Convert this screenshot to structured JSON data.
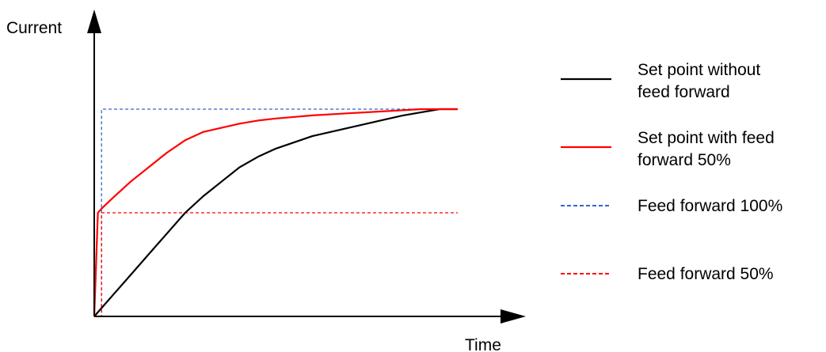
{
  "chart_data": {
    "type": "line",
    "xlabel": "Time",
    "ylabel": "Current",
    "xlim": [
      0,
      1
    ],
    "ylim": [
      0,
      1
    ],
    "grid": false,
    "legend_position": "right",
    "series": [
      {
        "name": "Set point without feed forward",
        "legend_lines": [
          "Set point without",
          "feed forward"
        ],
        "color": "#000000",
        "style": "solid",
        "x": [
          0,
          0.05,
          0.1,
          0.15,
          0.2,
          0.25,
          0.3,
          0.35,
          0.4,
          0.45,
          0.5,
          0.55,
          0.6,
          0.65,
          0.7,
          0.75,
          0.8,
          0.85,
          0.9,
          0.95,
          1.0
        ],
        "values": [
          0,
          0.1,
          0.2,
          0.3,
          0.4,
          0.5,
          0.58,
          0.65,
          0.72,
          0.77,
          0.81,
          0.84,
          0.87,
          0.89,
          0.91,
          0.93,
          0.95,
          0.97,
          0.985,
          1.0,
          1.0
        ]
      },
      {
        "name": "Set point with feed forward 50%",
        "legend_lines": [
          "Set point with feed",
          "forward 50%"
        ],
        "color": "#ff0000",
        "style": "solid",
        "x": [
          0,
          0.01,
          0.02,
          0.05,
          0.1,
          0.15,
          0.2,
          0.25,
          0.3,
          0.35,
          0.4,
          0.45,
          0.5,
          0.6,
          0.7,
          0.8,
          0.9,
          1.0
        ],
        "values": [
          0,
          0.5,
          0.52,
          0.57,
          0.65,
          0.72,
          0.79,
          0.85,
          0.89,
          0.91,
          0.93,
          0.945,
          0.955,
          0.97,
          0.98,
          0.99,
          1.0,
          1.0
        ]
      },
      {
        "name": "Feed forward 100%",
        "legend_lines": [
          "Feed forward 100%"
        ],
        "color": "#3366cc",
        "style": "dashed",
        "x": [
          0,
          0.02,
          0.02,
          1.0
        ],
        "values": [
          0,
          0,
          1.0,
          1.0
        ]
      },
      {
        "name": "Feed forward 50%",
        "legend_lines": [
          "Feed forward 50%"
        ],
        "color": "#ff0000",
        "style": "dashed",
        "x": [
          0,
          0.02,
          0.02,
          1.0
        ],
        "values": [
          0,
          0,
          0.5,
          0.5
        ]
      }
    ]
  }
}
